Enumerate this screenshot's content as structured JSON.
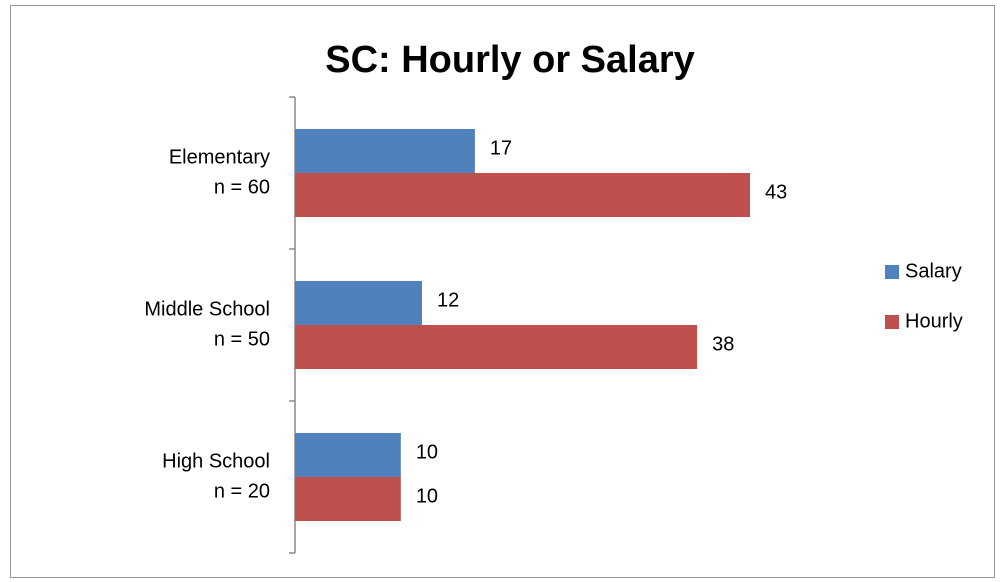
{
  "chart_data": {
    "type": "hbar",
    "title": "SC: Hourly or Salary",
    "categories": [
      [
        "Elementary",
        "n = 60"
      ],
      [
        "Middle School",
        "n = 50"
      ],
      [
        "High School",
        "n = 20"
      ]
    ],
    "series": [
      {
        "name": "Salary",
        "color": "#4f81bd",
        "values": [
          17,
          12,
          10
        ]
      },
      {
        "name": "Hourly",
        "color": "#c0504d",
        "values": [
          43,
          38,
          10
        ]
      }
    ],
    "legend": "right"
  }
}
